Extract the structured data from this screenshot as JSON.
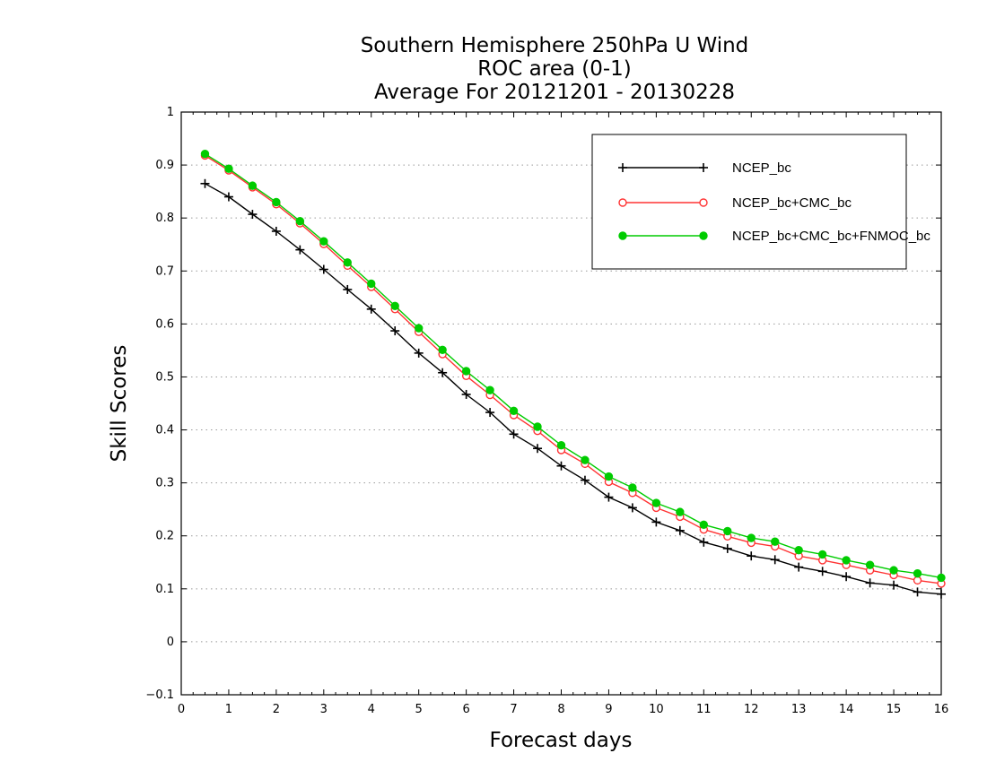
{
  "chart_data": {
    "type": "line",
    "title_lines": [
      "Southern Hemisphere 250hPa U Wind",
      "ROC area (0-1)",
      "Average For 20121201 - 20130228"
    ],
    "xlabel": "Forecast days",
    "ylabel": "Skill Scores",
    "xlim": [
      0,
      16
    ],
    "ylim": [
      -0.1,
      1
    ],
    "x_ticks": [
      "0",
      "1",
      "2",
      "3",
      "4",
      "5",
      "6",
      "7",
      "8",
      "9",
      "10",
      "11",
      "12",
      "13",
      "14",
      "15",
      "16"
    ],
    "y_ticks": [
      "−0.1",
      "0",
      "0.1",
      "0.2",
      "0.3",
      "0.4",
      "0.5",
      "0.6",
      "0.7",
      "0.8",
      "0.9",
      "1"
    ],
    "grid": "horizontal dotted",
    "legend_position": "top-right",
    "x": [
      0.5,
      1,
      1.5,
      2,
      2.5,
      3,
      3.5,
      4,
      4.5,
      5,
      5.5,
      6,
      6.5,
      7,
      7.5,
      8,
      8.5,
      9,
      9.5,
      10,
      10.5,
      11,
      11.5,
      12,
      12.5,
      13,
      13.5,
      14,
      14.5,
      15,
      15.5,
      16
    ],
    "series": [
      {
        "name": "NCEP_bc",
        "color": "#000000",
        "marker": "plus",
        "values": [
          0.865,
          0.84,
          0.807,
          0.775,
          0.74,
          0.703,
          0.665,
          0.628,
          0.587,
          0.545,
          0.508,
          0.467,
          0.433,
          0.392,
          0.365,
          0.332,
          0.305,
          0.273,
          0.253,
          0.226,
          0.21,
          0.188,
          0.176,
          0.162,
          0.155,
          0.141,
          0.133,
          0.123,
          0.111,
          0.107,
          0.094,
          0.09
        ]
      },
      {
        "name": "NCEP_bc+CMC_bc",
        "color": "#ff3333",
        "marker": "open-circle",
        "values": [
          0.918,
          0.89,
          0.858,
          0.826,
          0.79,
          0.751,
          0.71,
          0.67,
          0.628,
          0.585,
          0.543,
          0.502,
          0.466,
          0.428,
          0.398,
          0.362,
          0.336,
          0.302,
          0.281,
          0.253,
          0.236,
          0.212,
          0.199,
          0.187,
          0.18,
          0.162,
          0.154,
          0.145,
          0.135,
          0.126,
          0.116,
          0.11
        ]
      },
      {
        "name": "NCEP_bc+CMC_bc+FNMOC_bc",
        "color": "#00cc00",
        "marker": "filled-circle",
        "values": [
          0.921,
          0.893,
          0.861,
          0.83,
          0.794,
          0.756,
          0.716,
          0.676,
          0.634,
          0.592,
          0.551,
          0.511,
          0.475,
          0.436,
          0.406,
          0.371,
          0.343,
          0.312,
          0.291,
          0.262,
          0.245,
          0.221,
          0.209,
          0.196,
          0.189,
          0.173,
          0.165,
          0.154,
          0.145,
          0.135,
          0.129,
          0.121
        ]
      }
    ]
  }
}
